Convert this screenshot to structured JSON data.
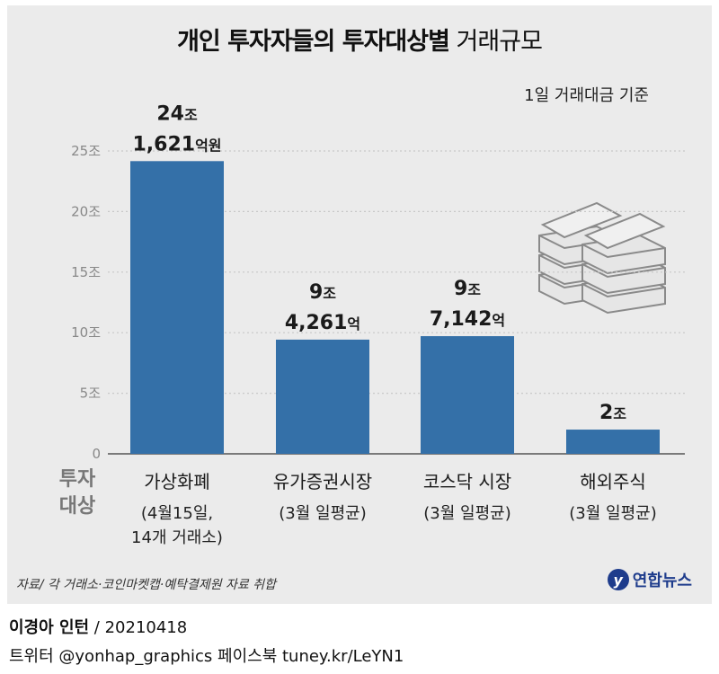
{
  "title": {
    "bold": "개인 투자자들의 투자대상별",
    "regular": "거래규모"
  },
  "subtitle": "1일 거래대금 기준",
  "chart_data": {
    "type": "bar",
    "title": "개인 투자자들의 투자대상별 거래규모",
    "subtitle": "1일 거래대금 기준",
    "ylabel": "",
    "xlabel": "투자 대상",
    "ylim": [
      0,
      25
    ],
    "yticks": [
      0,
      5,
      10,
      15,
      20,
      25
    ],
    "ytick_labels": [
      "0",
      "5조",
      "10조",
      "15조",
      "20조",
      "25조"
    ],
    "category_header": [
      "투자",
      "대상"
    ],
    "categories": [
      "가상화폐",
      "유가증권시장",
      "코스닥 시장",
      "해외주식"
    ],
    "category_notes": [
      [
        "(4월15일,",
        "14개 거래소)"
      ],
      [
        "(3월 일평균)"
      ],
      [
        "(3월 일평균)"
      ],
      [
        "(3월 일평균)"
      ]
    ],
    "values": [
      24.1621,
      9.4261,
      9.7142,
      2.0
    ],
    "data_labels": [
      [
        {
          "num": "24",
          "unit": "조"
        },
        {
          "num": "1,621",
          "unit": "억원"
        }
      ],
      [
        {
          "num": "9",
          "unit": "조"
        },
        {
          "num": "4,261",
          "unit": "억"
        }
      ],
      [
        {
          "num": "9",
          "unit": "조"
        },
        {
          "num": "7,142",
          "unit": "억"
        }
      ],
      [
        {
          "num": "2",
          "unit": "조"
        }
      ]
    ],
    "bar_color": "#3470a8"
  },
  "source": "자료/ 각 거래소·코인마켓캡·예탁결제원 자료 취합",
  "logo": "연합뉴스",
  "credit": {
    "name": "이경아 인턴",
    "rest": " / 20210418"
  },
  "social": "트위터 @yonhap_graphics  페이스북 tuney.kr/LeYN1"
}
